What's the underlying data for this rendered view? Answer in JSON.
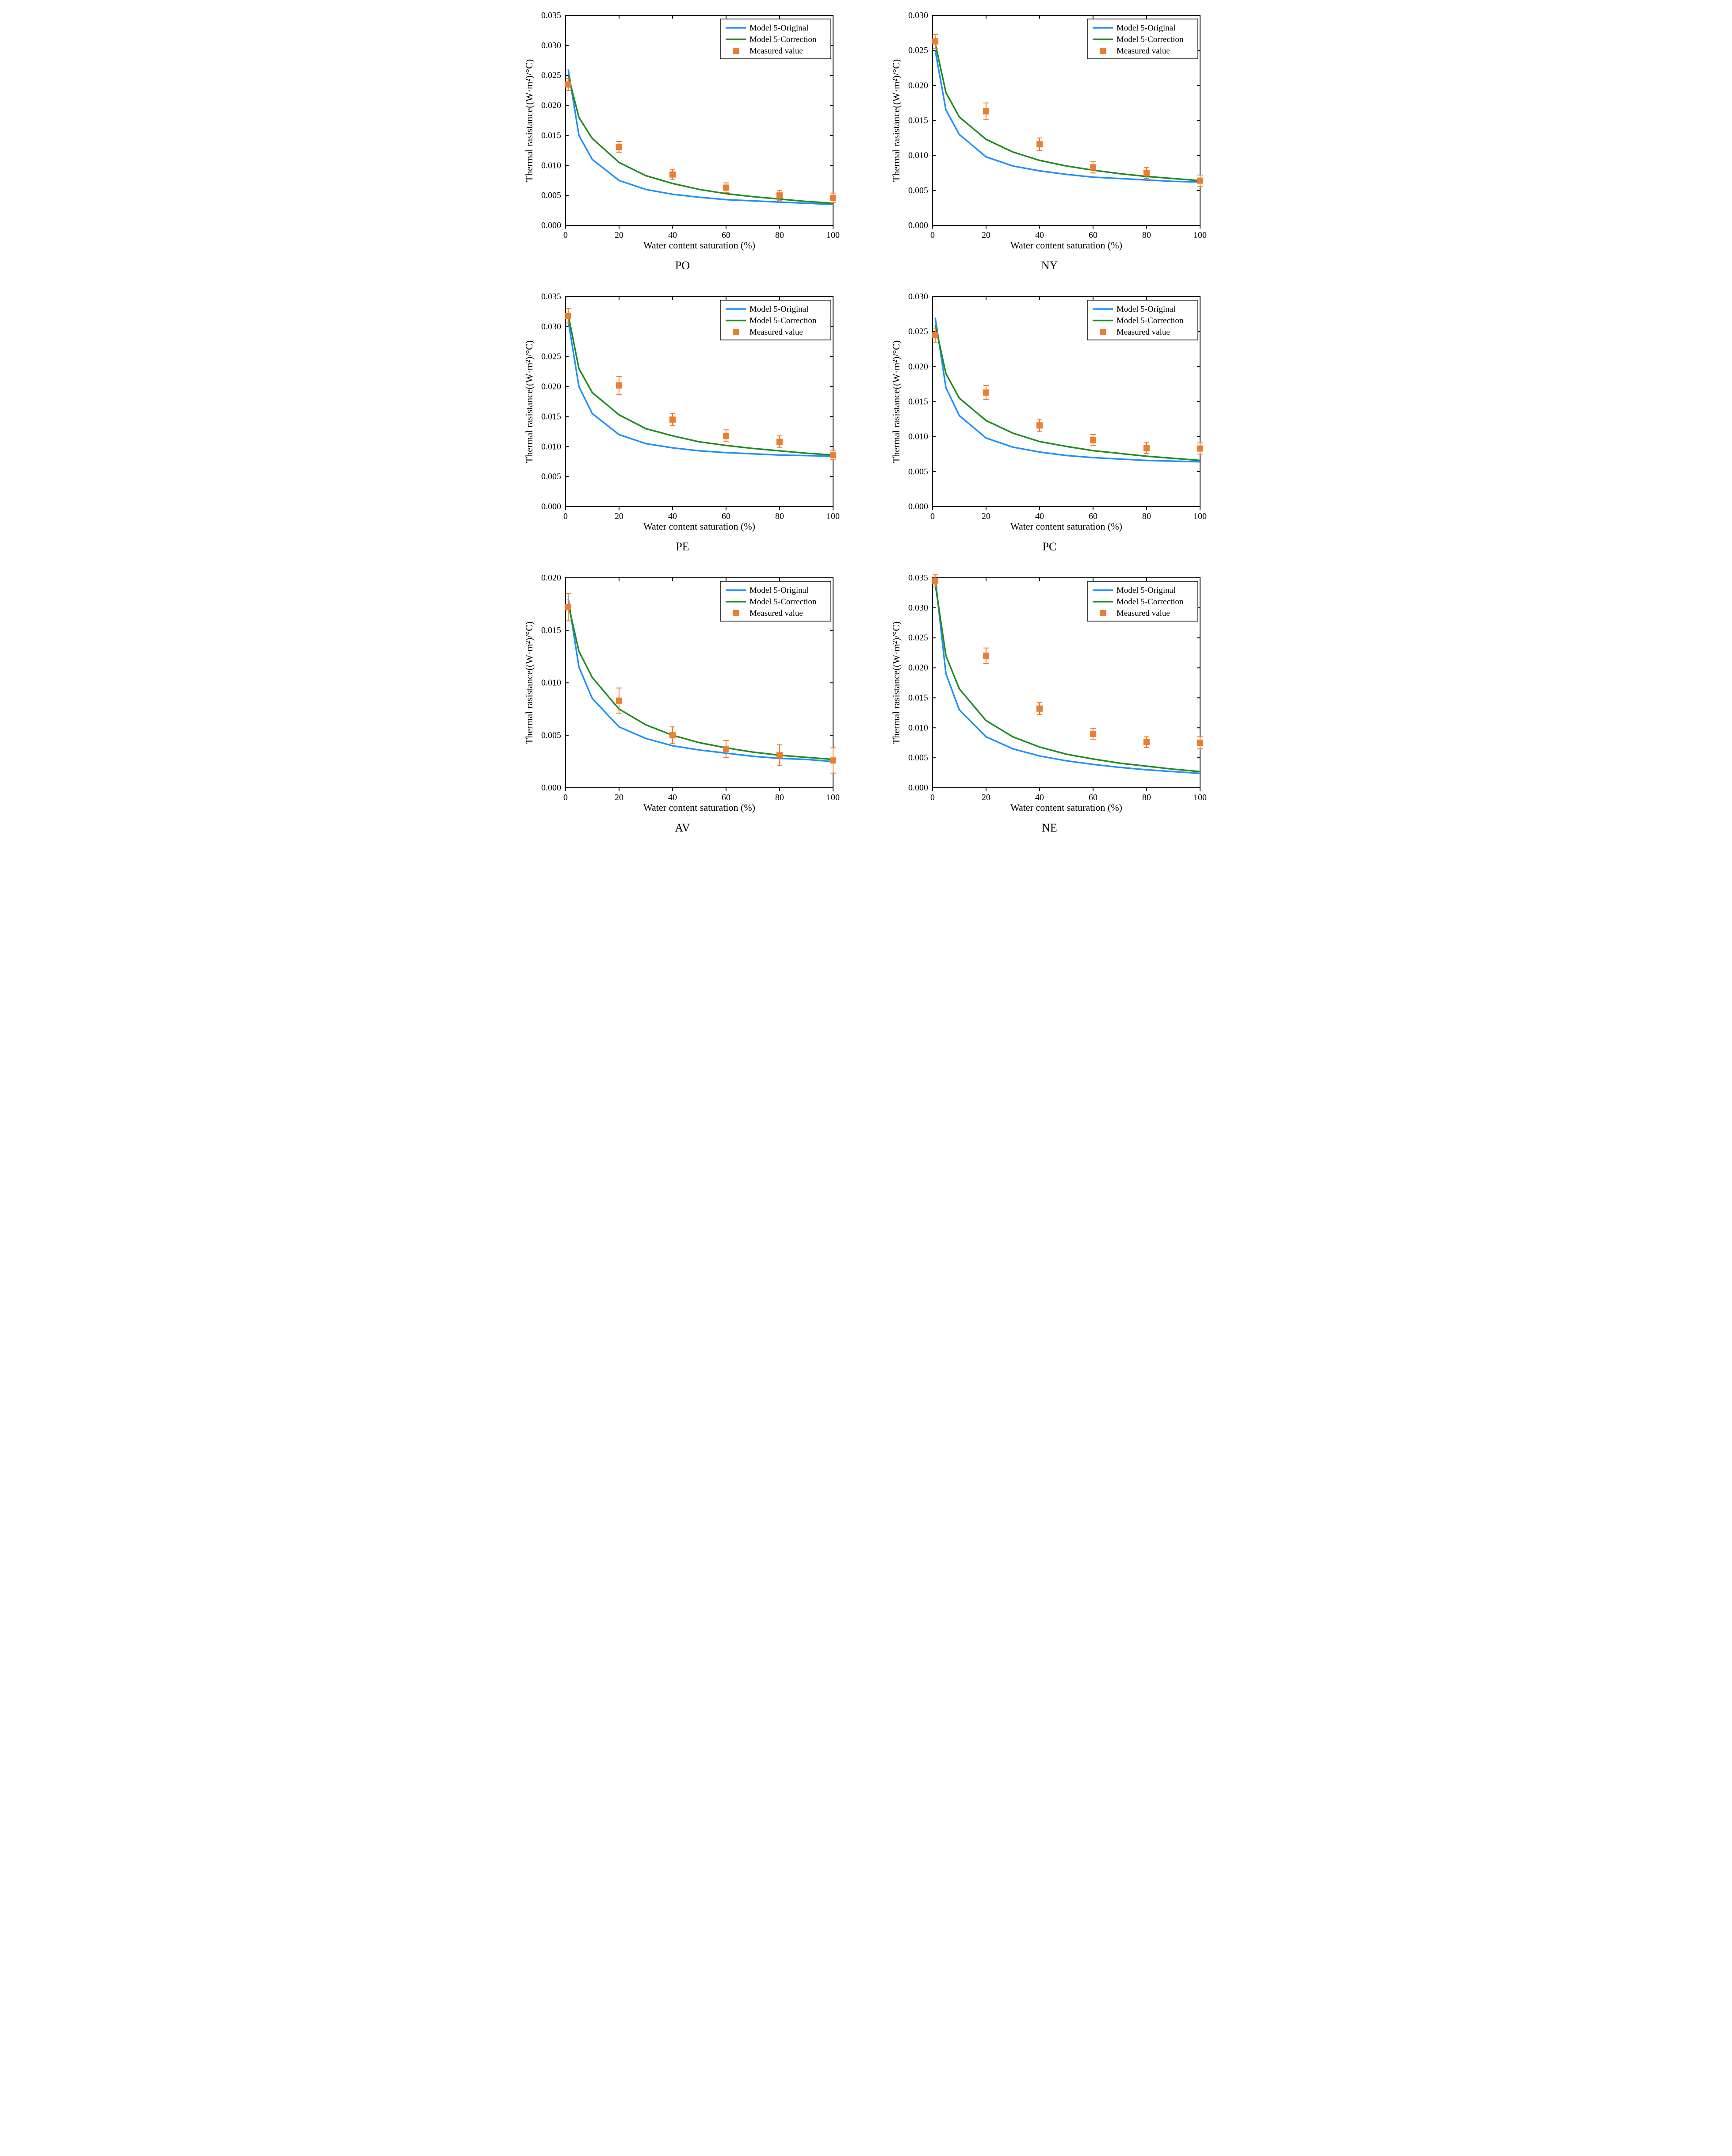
{
  "colors": {
    "original": "#1e90ff",
    "correction": "#228b22",
    "measured": "#ed7d31",
    "axis": "#000000",
    "bg": "#ffffff"
  },
  "legend": {
    "original": "Model 5-Original",
    "correction": "Model 5-Correction",
    "measured": "Measured value"
  },
  "xAxis": {
    "label": "Water content saturation (%)",
    "min": 0,
    "max": 100,
    "ticks": [
      0,
      20,
      40,
      60,
      80,
      100
    ]
  },
  "yAxisLabel": "Thermal rasistance((W·m²)/°C)",
  "charts": [
    {
      "id": "PO",
      "ymax": 0.035,
      "ystep": 0.005,
      "original": [
        [
          1,
          0.026
        ],
        [
          5,
          0.015
        ],
        [
          10,
          0.011
        ],
        [
          20,
          0.0075
        ],
        [
          30,
          0.006
        ],
        [
          40,
          0.0052
        ],
        [
          50,
          0.0047
        ],
        [
          60,
          0.0043
        ],
        [
          70,
          0.0041
        ],
        [
          80,
          0.0039
        ],
        [
          90,
          0.0037
        ],
        [
          100,
          0.0035
        ]
      ],
      "correction": [
        [
          1,
          0.025
        ],
        [
          5,
          0.018
        ],
        [
          10,
          0.0145
        ],
        [
          20,
          0.0105
        ],
        [
          30,
          0.0083
        ],
        [
          40,
          0.007
        ],
        [
          50,
          0.006
        ],
        [
          60,
          0.0053
        ],
        [
          70,
          0.0048
        ],
        [
          80,
          0.0044
        ],
        [
          90,
          0.004
        ],
        [
          100,
          0.0037
        ]
      ],
      "measured": [
        [
          1,
          0.0235,
          0.001
        ],
        [
          20,
          0.0131,
          0.0009
        ],
        [
          40,
          0.0085,
          0.0008
        ],
        [
          60,
          0.0063,
          0.0008
        ],
        [
          80,
          0.005,
          0.0008
        ],
        [
          100,
          0.0046,
          0.0008
        ]
      ]
    },
    {
      "id": "NY",
      "ymax": 0.03,
      "ystep": 0.005,
      "original": [
        [
          1,
          0.025
        ],
        [
          5,
          0.0165
        ],
        [
          10,
          0.013
        ],
        [
          20,
          0.0098
        ],
        [
          30,
          0.0085
        ],
        [
          40,
          0.0078
        ],
        [
          50,
          0.0073
        ],
        [
          60,
          0.0069
        ],
        [
          70,
          0.0067
        ],
        [
          80,
          0.0065
        ],
        [
          90,
          0.0063
        ],
        [
          100,
          0.0062
        ]
      ],
      "correction": [
        [
          1,
          0.026
        ],
        [
          5,
          0.019
        ],
        [
          10,
          0.0155
        ],
        [
          20,
          0.0123
        ],
        [
          30,
          0.0105
        ],
        [
          40,
          0.0093
        ],
        [
          50,
          0.0085
        ],
        [
          60,
          0.0079
        ],
        [
          70,
          0.0074
        ],
        [
          80,
          0.007
        ],
        [
          90,
          0.0067
        ],
        [
          100,
          0.0064
        ]
      ],
      "measured": [
        [
          1,
          0.0263,
          0.001
        ],
        [
          20,
          0.0163,
          0.0012
        ],
        [
          40,
          0.0116,
          0.0009
        ],
        [
          60,
          0.0083,
          0.0008
        ],
        [
          80,
          0.0075,
          0.0008
        ],
        [
          100,
          0.0064,
          0.0008
        ]
      ]
    },
    {
      "id": "PE",
      "ymax": 0.035,
      "ystep": 0.005,
      "original": [
        [
          1,
          0.031
        ],
        [
          5,
          0.02
        ],
        [
          10,
          0.0155
        ],
        [
          20,
          0.012
        ],
        [
          30,
          0.0105
        ],
        [
          40,
          0.0098
        ],
        [
          50,
          0.0093
        ],
        [
          60,
          0.009
        ],
        [
          70,
          0.0088
        ],
        [
          80,
          0.0086
        ],
        [
          90,
          0.0085
        ],
        [
          100,
          0.0084
        ]
      ],
      "correction": [
        [
          1,
          0.032
        ],
        [
          5,
          0.023
        ],
        [
          10,
          0.019
        ],
        [
          20,
          0.0153
        ],
        [
          30,
          0.013
        ],
        [
          40,
          0.0118
        ],
        [
          50,
          0.0108
        ],
        [
          60,
          0.0102
        ],
        [
          70,
          0.0097
        ],
        [
          80,
          0.0093
        ],
        [
          90,
          0.0089
        ],
        [
          100,
          0.0086
        ]
      ],
      "measured": [
        [
          1,
          0.0318,
          0.0012
        ],
        [
          20,
          0.0202,
          0.0015
        ],
        [
          40,
          0.0145,
          0.001
        ],
        [
          60,
          0.0118,
          0.001
        ],
        [
          80,
          0.0108,
          0.001
        ],
        [
          100,
          0.0086,
          0.0008
        ]
      ]
    },
    {
      "id": "PC",
      "ymax": 0.03,
      "ystep": 0.005,
      "original": [
        [
          1,
          0.027
        ],
        [
          5,
          0.017
        ],
        [
          10,
          0.013
        ],
        [
          20,
          0.0098
        ],
        [
          30,
          0.0085
        ],
        [
          40,
          0.0078
        ],
        [
          50,
          0.0073
        ],
        [
          60,
          0.007
        ],
        [
          70,
          0.0068
        ],
        [
          80,
          0.0066
        ],
        [
          90,
          0.0065
        ],
        [
          100,
          0.0064
        ]
      ],
      "correction": [
        [
          1,
          0.026
        ],
        [
          5,
          0.019
        ],
        [
          10,
          0.0155
        ],
        [
          20,
          0.0123
        ],
        [
          30,
          0.0105
        ],
        [
          40,
          0.0093
        ],
        [
          50,
          0.0086
        ],
        [
          60,
          0.008
        ],
        [
          70,
          0.0076
        ],
        [
          80,
          0.0072
        ],
        [
          90,
          0.0069
        ],
        [
          100,
          0.0066
        ]
      ],
      "measured": [
        [
          1,
          0.0245,
          0.001
        ],
        [
          20,
          0.0163,
          0.001
        ],
        [
          40,
          0.0116,
          0.0009
        ],
        [
          60,
          0.0095,
          0.0008
        ],
        [
          80,
          0.0084,
          0.0008
        ],
        [
          100,
          0.0083,
          0.0008
        ]
      ]
    },
    {
      "id": "AV",
      "ymax": 0.02,
      "ystep": 0.005,
      "original": [
        [
          1,
          0.018
        ],
        [
          5,
          0.0115
        ],
        [
          10,
          0.0085
        ],
        [
          20,
          0.0058
        ],
        [
          30,
          0.0047
        ],
        [
          40,
          0.004
        ],
        [
          50,
          0.0036
        ],
        [
          60,
          0.0033
        ],
        [
          70,
          0.003
        ],
        [
          80,
          0.0028
        ],
        [
          90,
          0.0027
        ],
        [
          100,
          0.0025
        ]
      ],
      "correction": [
        [
          1,
          0.0175
        ],
        [
          5,
          0.013
        ],
        [
          10,
          0.0105
        ],
        [
          20,
          0.0075
        ],
        [
          30,
          0.006
        ],
        [
          40,
          0.005
        ],
        [
          50,
          0.0043
        ],
        [
          60,
          0.0038
        ],
        [
          70,
          0.0034
        ],
        [
          80,
          0.0031
        ],
        [
          90,
          0.0029
        ],
        [
          100,
          0.0027
        ]
      ],
      "measured": [
        [
          1,
          0.0172,
          0.0013
        ],
        [
          20,
          0.0083,
          0.0012
        ],
        [
          40,
          0.005,
          0.0008
        ],
        [
          60,
          0.0037,
          0.0008
        ],
        [
          80,
          0.0031,
          0.001
        ],
        [
          100,
          0.0026,
          0.0012
        ]
      ]
    },
    {
      "id": "NE",
      "ymax": 0.035,
      "ystep": 0.005,
      "original": [
        [
          1,
          0.035
        ],
        [
          5,
          0.019
        ],
        [
          10,
          0.013
        ],
        [
          20,
          0.0085
        ],
        [
          30,
          0.0065
        ],
        [
          40,
          0.0053
        ],
        [
          50,
          0.0045
        ],
        [
          60,
          0.0039
        ],
        [
          70,
          0.0034
        ],
        [
          80,
          0.003
        ],
        [
          90,
          0.0027
        ],
        [
          100,
          0.0024
        ]
      ],
      "correction": [
        [
          1,
          0.034
        ],
        [
          5,
          0.022
        ],
        [
          10,
          0.0165
        ],
        [
          20,
          0.0112
        ],
        [
          30,
          0.0085
        ],
        [
          40,
          0.0068
        ],
        [
          50,
          0.0056
        ],
        [
          60,
          0.0048
        ],
        [
          70,
          0.0041
        ],
        [
          80,
          0.0036
        ],
        [
          90,
          0.0031
        ],
        [
          100,
          0.0027
        ]
      ],
      "measured": [
        [
          1,
          0.0345,
          0.001
        ],
        [
          20,
          0.022,
          0.0013
        ],
        [
          40,
          0.0132,
          0.001
        ],
        [
          60,
          0.009,
          0.0009
        ],
        [
          80,
          0.0076,
          0.0009
        ],
        [
          100,
          0.0075,
          0.001
        ]
      ]
    }
  ]
}
